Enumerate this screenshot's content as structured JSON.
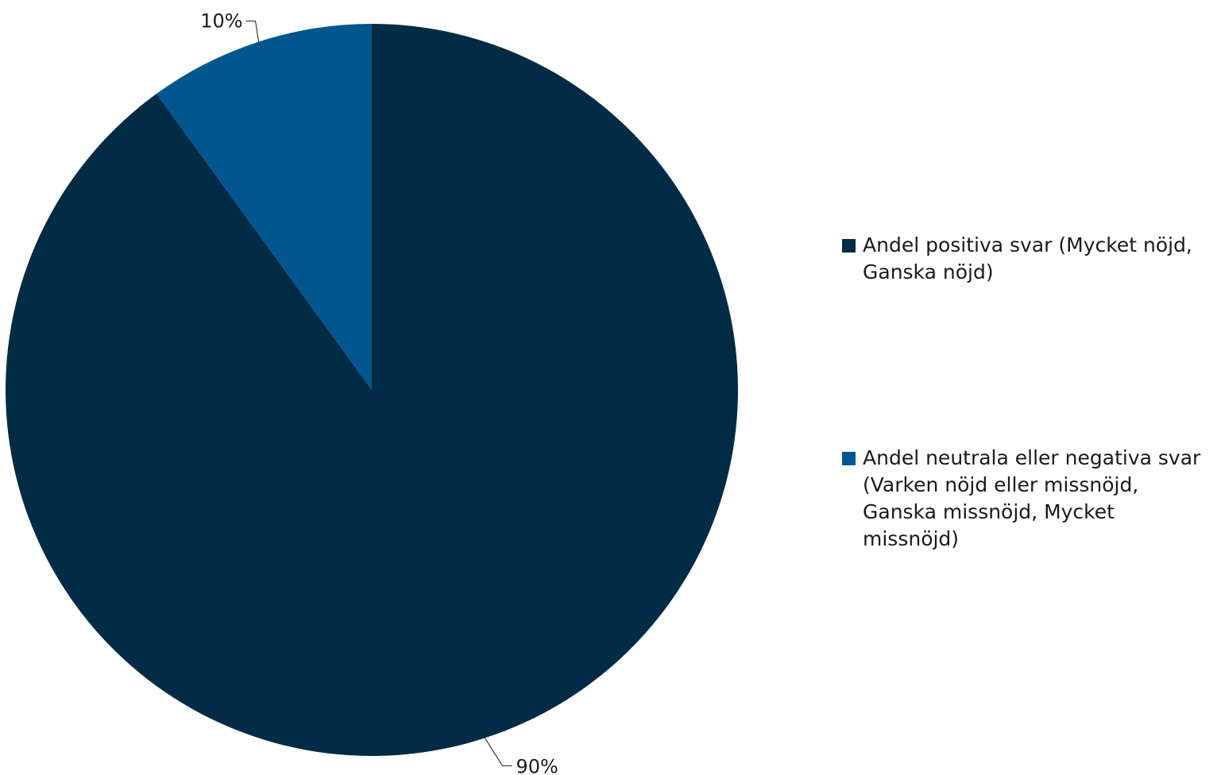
{
  "chart_data": {
    "type": "pie",
    "categories": [
      "Andel positiva svar (Mycket nöjd, Ganska nöjd)",
      "Andel neutrala eller negativa svar (Varken nöjd eller missnöjd, Ganska missnöjd, Mycket missnöjd)"
    ],
    "values": [
      90,
      10
    ],
    "data_labels": [
      "90%",
      "10%"
    ],
    "colors": [
      "#022b45",
      "#00578f"
    ],
    "legend_position": "right",
    "title": ""
  },
  "legend": {
    "items": [
      {
        "label": "Andel positiva svar (Mycket nöjd, Ganska nöjd)",
        "color": "#022b45"
      },
      {
        "label": "Andel neutrala eller negativa svar (Varken nöjd eller missnöjd, Ganska missnöjd, Mycket missnöjd)",
        "color": "#00578f"
      }
    ]
  }
}
